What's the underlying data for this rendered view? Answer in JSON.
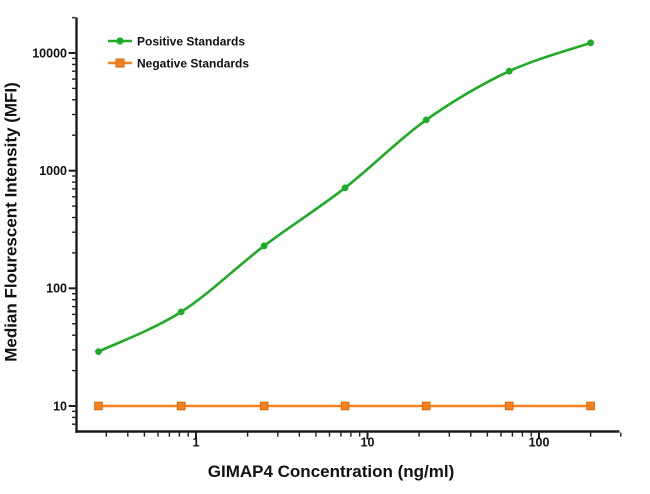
{
  "figure": {
    "background": "#ffffff",
    "axis_color": "#1c1c1c",
    "text_color": "#111111"
  },
  "chart_data": {
    "type": "line",
    "title": "",
    "xlabel": "GIMAP4 Concentration (ng/ml)",
    "ylabel": "Median Flourescent Intensity (MFI)",
    "x_scale": "log",
    "y_scale": "log",
    "xlim": [
      0.2,
      300
    ],
    "ylim": [
      6,
      20000
    ],
    "x_major_ticks": [
      1,
      10,
      100
    ],
    "y_major_ticks": [
      10,
      100,
      1000,
      10000
    ],
    "grid": false,
    "legend": {
      "position": "top-left-inside",
      "entries": [
        "Positive Standards",
        "Negative Standards"
      ]
    },
    "series": [
      {
        "name": "Positive Standards",
        "color": "#20ab27",
        "marker": "circle",
        "smooth": true,
        "x": [
          0.27,
          0.82,
          2.5,
          7.4,
          22,
          67,
          200
        ],
        "y": [
          29,
          63,
          230,
          715,
          2700,
          7000,
          12200
        ]
      },
      {
        "name": "Negative Standards",
        "color": "#f5821f",
        "marker": "square",
        "marker_edge": "#d4680c",
        "smooth": false,
        "x": [
          0.27,
          0.82,
          2.5,
          7.4,
          22,
          67,
          200
        ],
        "y": [
          10,
          10,
          10,
          10,
          10,
          10,
          10
        ]
      }
    ]
  }
}
